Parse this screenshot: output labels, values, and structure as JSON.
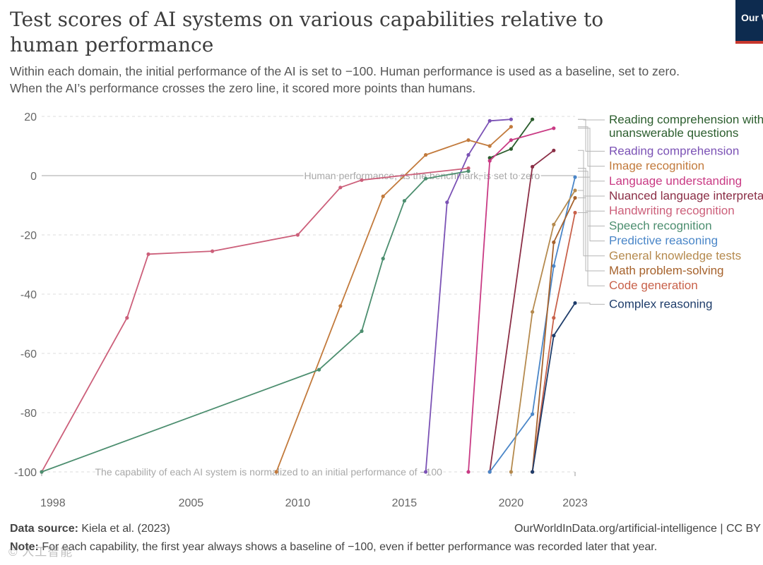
{
  "title": "Test scores of AI systems on various capabilities relative to human performance",
  "subtitle_line1": "Within each domain, the initial performance of the AI is set to −100. Human performance is used as a baseline, set to zero.",
  "subtitle_line2": "When the AI’s performance crosses the zero line, it scored more points than humans.",
  "logo_text": "Our World in Data",
  "source_label": "Data source:",
  "source_value": "Kiela et al. (2023)",
  "url": "OurWorldInData.org/artificial-intelligence | CC BY",
  "note_label": "Note:",
  "note_value": "For each capability, the first year always shows a baseline of −100, even if better performance was recorded later that year.",
  "watermark": "© 人工智能",
  "chart_data": {
    "type": "line",
    "xlim": [
      1998,
      2023
    ],
    "ylim": [
      -100,
      20
    ],
    "x_ticks": [
      1998,
      2005,
      2010,
      2015,
      2020,
      2023
    ],
    "y_ticks": [
      20,
      0,
      -20,
      -40,
      -60,
      -80,
      -100
    ],
    "grid": true,
    "legend_placement": "right",
    "annotations": [
      {
        "text": "Human performance, as the benchmark, is set to zero",
        "x": 2010.3,
        "y": 0
      },
      {
        "text": "The capability of each AI system is normalized to an initial performance of −100",
        "x": 2000.5,
        "y": -100
      }
    ],
    "series": [
      {
        "name": "Reading comprehension with unanswerable questions",
        "color": "#2c5e2e",
        "points": [
          [
            2019,
            6
          ],
          [
            2020,
            9
          ],
          [
            2021,
            19
          ]
        ]
      },
      {
        "name": "Reading comprehension",
        "color": "#7b52b5",
        "points": [
          [
            2016,
            -100
          ],
          [
            2017,
            -9
          ],
          [
            2018,
            7
          ],
          [
            2019,
            18.5
          ],
          [
            2020,
            19
          ]
        ]
      },
      {
        "name": "Image recognition",
        "color": "#c27a3c",
        "points": [
          [
            2009,
            -100
          ],
          [
            2012,
            -44
          ],
          [
            2014,
            -7
          ],
          [
            2016,
            7
          ],
          [
            2018,
            12
          ],
          [
            2019,
            10
          ],
          [
            2020,
            16.5
          ]
        ]
      },
      {
        "name": "Language understanding",
        "color": "#c93a84",
        "points": [
          [
            2018,
            -100
          ],
          [
            2019,
            5
          ],
          [
            2020,
            12
          ],
          [
            2022,
            16
          ]
        ]
      },
      {
        "name": "Nuanced language interpretation",
        "color": "#8b2e46",
        "points": [
          [
            2019,
            -100
          ],
          [
            2021,
            3
          ],
          [
            2022,
            8.5
          ]
        ]
      },
      {
        "name": "Handwriting recognition",
        "color": "#cc5f7a",
        "points": [
          [
            1998,
            -100
          ],
          [
            2002,
            -48
          ],
          [
            2003,
            -26.5
          ],
          [
            2006,
            -25.5
          ],
          [
            2010,
            -20
          ],
          [
            2012,
            -4
          ],
          [
            2013,
            -1.5
          ],
          [
            2018,
            2.5
          ]
        ]
      },
      {
        "name": "Speech recognition",
        "color": "#4c8e6f",
        "points": [
          [
            1998,
            -100
          ],
          [
            2011,
            -65.5
          ],
          [
            2013,
            -52.5
          ],
          [
            2014,
            -28
          ],
          [
            2015,
            -8.5
          ],
          [
            2016,
            -1
          ],
          [
            2018,
            1.5
          ]
        ]
      },
      {
        "name": "Predictive reasoning",
        "color": "#4a86c8",
        "points": [
          [
            2019,
            -100
          ],
          [
            2021,
            -80.5
          ],
          [
            2022,
            -30.5
          ],
          [
            2023,
            -0.5
          ]
        ]
      },
      {
        "name": "General knowledge tests",
        "color": "#b58a4e",
        "points": [
          [
            2020,
            -100
          ],
          [
            2021,
            -46
          ],
          [
            2022,
            -16.5
          ],
          [
            2023,
            -5
          ]
        ]
      },
      {
        "name": "Math problem-solving",
        "color": "#a6622c",
        "points": [
          [
            2021,
            -100
          ],
          [
            2022,
            -22.5
          ],
          [
            2023,
            -7.5
          ]
        ]
      },
      {
        "name": "Code generation",
        "color": "#c8614a",
        "points": [
          [
            2021,
            -100
          ],
          [
            2022,
            -48
          ],
          [
            2023,
            -12.5
          ]
        ]
      },
      {
        "name": "Complex reasoning",
        "color": "#1f3d6b",
        "points": [
          [
            2021,
            -100
          ],
          [
            2022,
            -54
          ],
          [
            2023,
            -43
          ]
        ]
      }
    ]
  }
}
